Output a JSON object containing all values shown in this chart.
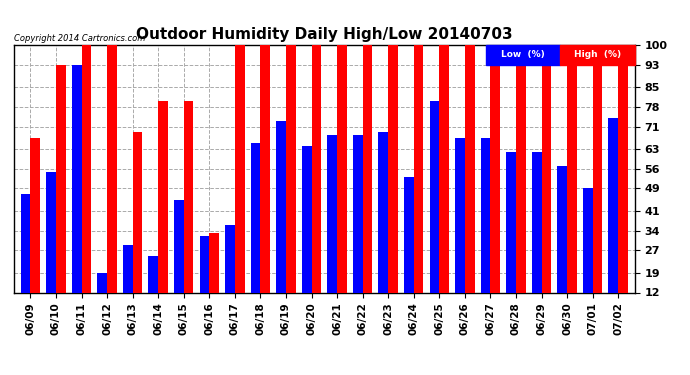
{
  "title": "Outdoor Humidity Daily High/Low 20140703",
  "copyright": "Copyright 2014 Cartronics.com",
  "dates": [
    "06/09",
    "06/10",
    "06/11",
    "06/12",
    "06/13",
    "06/14",
    "06/15",
    "06/16",
    "06/17",
    "06/18",
    "06/19",
    "06/20",
    "06/21",
    "06/22",
    "06/23",
    "06/24",
    "06/25",
    "06/26",
    "06/27",
    "06/28",
    "06/29",
    "06/30",
    "07/01",
    "07/02"
  ],
  "high": [
    67,
    93,
    100,
    100,
    69,
    80,
    80,
    33,
    100,
    100,
    100,
    100,
    100,
    100,
    100,
    100,
    100,
    100,
    96,
    95,
    95,
    99,
    100,
    93
  ],
  "low": [
    47,
    55,
    93,
    19,
    29,
    25,
    45,
    32,
    36,
    65,
    73,
    64,
    68,
    68,
    69,
    53,
    80,
    67,
    67,
    62,
    62,
    57,
    49,
    74
  ],
  "high_color": "#ff0000",
  "low_color": "#0000ff",
  "bg_color": "#ffffff",
  "grid_color": "#aaaaaa",
  "yticks": [
    12,
    19,
    27,
    34,
    41,
    49,
    56,
    63,
    71,
    78,
    85,
    93,
    100
  ],
  "ymin": 12,
  "ymax": 100,
  "title_fontsize": 11,
  "legend_low_label": "Low  (%)",
  "legend_high_label": "High  (%)"
}
